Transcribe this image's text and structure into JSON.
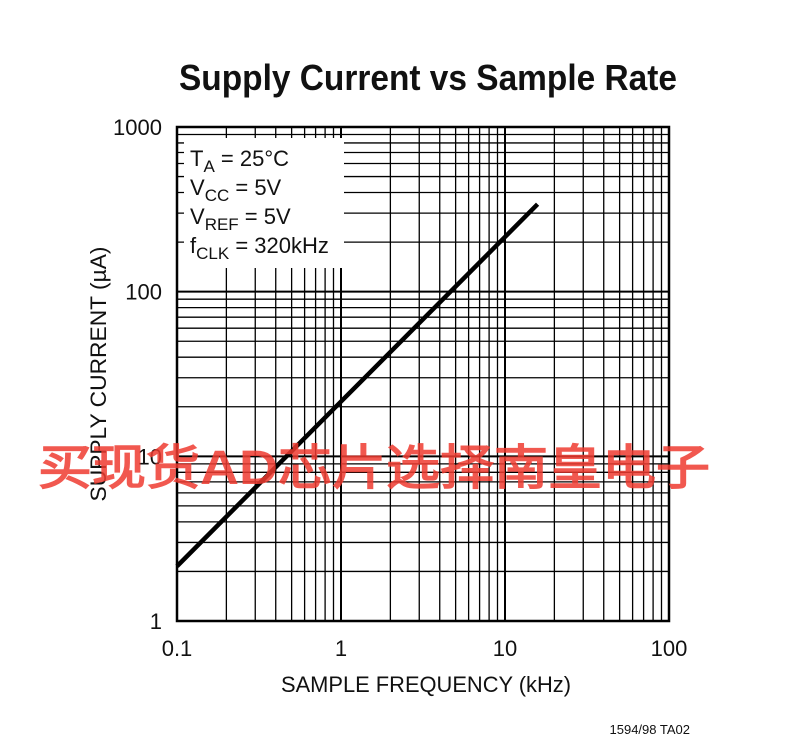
{
  "chart_data": {
    "type": "line",
    "title": "Supply Current vs Sample Rate",
    "xlabel": "SAMPLE FREQUENCY (kHz)",
    "ylabel": "SUPPLY CURRENT (µA)",
    "x": [
      0.1,
      1,
      10,
      15.8
    ],
    "values": [
      2.15,
      21.5,
      215,
      340
    ],
    "color": "#000000",
    "xscale": "log",
    "yscale": "log",
    "xlim": [
      0.1,
      100
    ],
    "ylim": [
      1,
      1000
    ],
    "xticks": [
      0.1,
      1,
      10,
      100
    ],
    "yticks": [
      1,
      10,
      100,
      1000
    ],
    "xminor": [
      0.2,
      0.3,
      0.4,
      0.5,
      0.6,
      0.7,
      0.8,
      0.9,
      2,
      3,
      4,
      5,
      6,
      7,
      8,
      9,
      20,
      30,
      40,
      50,
      60,
      70,
      80,
      90
    ],
    "yminor": [
      2,
      3,
      4,
      5,
      6,
      7,
      8,
      9,
      20,
      30,
      40,
      50,
      60,
      70,
      80,
      90,
      200,
      300,
      400,
      500,
      600,
      700,
      800,
      900
    ],
    "grid": true,
    "annotations": [
      {
        "main": "T",
        "sub": "A",
        "rest": " = 25°C"
      },
      {
        "main": "V",
        "sub": "CC",
        "rest": " = 5V"
      },
      {
        "main": "V",
        "sub": "REF",
        "rest": " = 5V"
      },
      {
        "main": "f",
        "sub": "CLK",
        "rest": " = 320kHz"
      }
    ],
    "footnote": "1594/98 TA02",
    "watermark": "买现货AD芯片选择南皇电子"
  }
}
